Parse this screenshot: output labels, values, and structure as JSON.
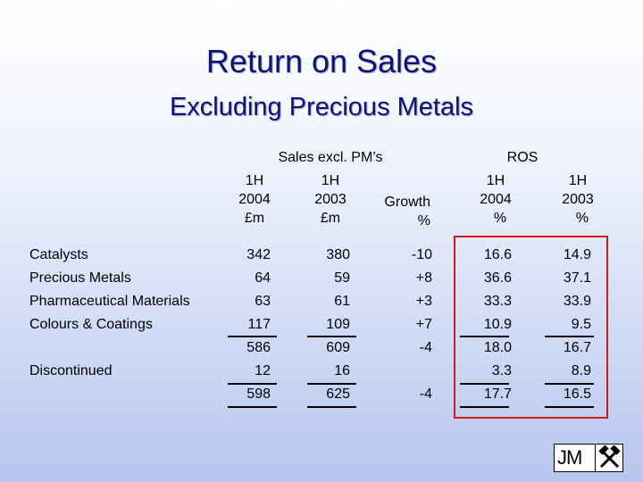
{
  "title": "Return on Sales",
  "subtitle": "Excluding Precious Metals",
  "headers": {
    "sales_group": "Sales excl. PM’s",
    "ros_group": "ROS",
    "columns": [
      {
        "line1": "1H",
        "line2": "2004",
        "line3": "£m"
      },
      {
        "line1": "1H",
        "line2": "2003",
        "line3": "£m"
      },
      {
        "line1": "",
        "line2": "Growth",
        "line3": "%"
      },
      {
        "line1": "1H",
        "line2": "2004",
        "line3": "%"
      },
      {
        "line1": "1H",
        "line2": "2003",
        "line3": "%"
      }
    ]
  },
  "rows": [
    {
      "label": "Catalysts",
      "s2004": "342",
      "s2003": "380",
      "growth": "-10",
      "r2004": "16.6",
      "r2003": "14.9"
    },
    {
      "label": "Precious Metals",
      "s2004": "64",
      "s2003": "59",
      "growth": "+8",
      "r2004": "36.6",
      "r2003": "37.1"
    },
    {
      "label": "Pharmaceutical Materials",
      "s2004": "63",
      "s2003": "61",
      "growth": "+3",
      "r2004": "33.3",
      "r2003": "33.9"
    },
    {
      "label": "Colours & Coatings",
      "s2004": "117",
      "s2003": "109",
      "growth": "+7",
      "r2004": "10.9",
      "r2003": "9.5"
    },
    {
      "label": "",
      "s2004": "586",
      "s2003": "609",
      "growth": "-4",
      "r2004": "18.0",
      "r2003": "16.7"
    },
    {
      "label": "Discontinued",
      "s2004": "12",
      "s2003": "16",
      "growth": "",
      "r2004": "3.3",
      "r2003": "8.9"
    },
    {
      "label": "",
      "s2004": "598",
      "s2003": "625",
      "growth": "-4",
      "r2004": "17.7",
      "r2003": "16.5"
    }
  ],
  "logo": {
    "text": "JM",
    "icon": "crossed-hammers-icon"
  },
  "colors": {
    "title": "#10107a",
    "ros_box": "#d21a1a"
  }
}
